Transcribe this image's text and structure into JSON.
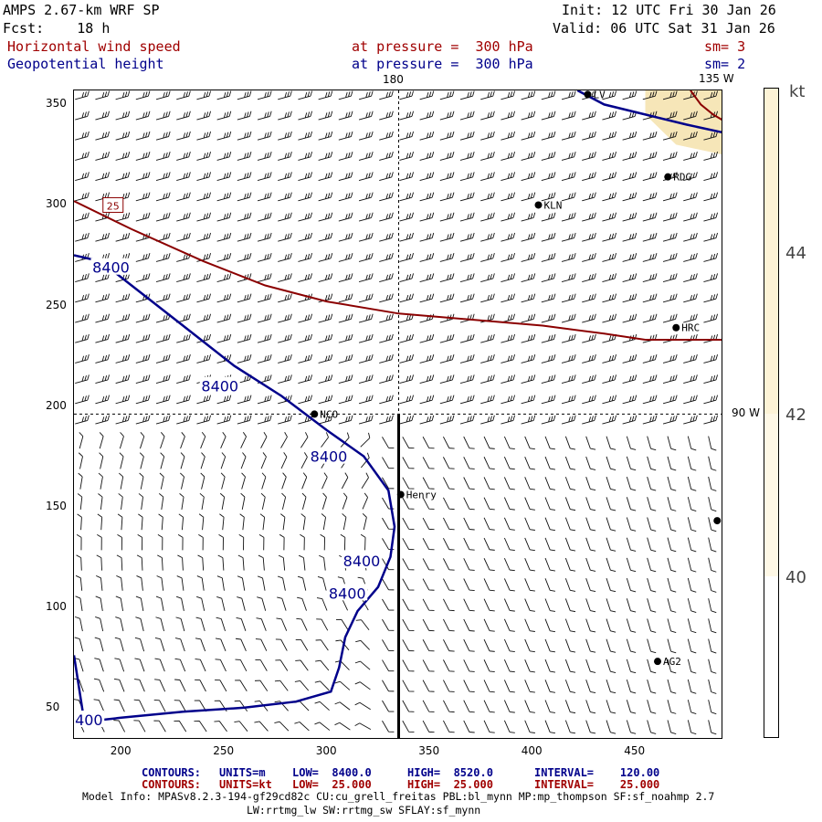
{
  "header": {
    "title": "AMPS 2.67-km WRF SP",
    "fcst": "Fcst:    18 h",
    "init": "Init: 12 UTC Fri 30 Jan 26",
    "valid": "Valid: 06 UTC Sat 31 Jan 26",
    "field1": "Horizontal wind speed",
    "field1_level": "at pressure =  300 hPa",
    "field1_sm": "sm= 3",
    "field2": "Geopotential height",
    "field2_level": "at pressure =  300 hPa",
    "field2_sm": "sm= 2"
  },
  "map": {
    "lon_label_top": "180",
    "lon_label_topright": "135 W",
    "lon_label_right": "90 W",
    "x_ticks": [
      "200",
      "250",
      "300",
      "350",
      "400",
      "450"
    ],
    "y_ticks": [
      "350",
      "300",
      "250",
      "200",
      "150",
      "100",
      "50"
    ],
    "x_tick_values": [
      200,
      250,
      300,
      350,
      400,
      450
    ],
    "y_tick_values": [
      350,
      300,
      250,
      200,
      150,
      100,
      50
    ],
    "x_range": [
      177,
      493
    ],
    "y_range": [
      34,
      357
    ],
    "stations": [
      {
        "name": "NCO",
        "x": 294,
        "y": 196
      },
      {
        "name": "Henry",
        "x": 336,
        "y": 156
      },
      {
        "name": "KLN",
        "x": 403,
        "y": 300
      },
      {
        "name": "RDG",
        "x": 466,
        "y": 314
      },
      {
        "name": "HRC",
        "x": 470,
        "y": 239
      },
      {
        "name": "AG2",
        "x": 461,
        "y": 73
      },
      {
        "name": "LV",
        "x": 427,
        "y": 355
      },
      {
        "name": "",
        "x": 490,
        "y": 143
      }
    ],
    "height_contour_label": "8400",
    "height_label_positions": [
      [
        195,
        269
      ],
      [
        248,
        210
      ],
      [
        301,
        175
      ],
      [
        317,
        123
      ],
      [
        310,
        107
      ],
      [
        182,
        44
      ]
    ],
    "wind_contour_label": "25",
    "wind_label_pos": [
      196,
      300
    ],
    "height_contour_points": [
      [
        177,
        76
      ],
      [
        182,
        43
      ],
      [
        200,
        45
      ],
      [
        230,
        48
      ],
      [
        260,
        50
      ],
      [
        285,
        53
      ],
      [
        302,
        58
      ],
      [
        306,
        70
      ],
      [
        309,
        85
      ],
      [
        315,
        98
      ],
      [
        325,
        110
      ],
      [
        331,
        125
      ],
      [
        333,
        140
      ],
      [
        330,
        158
      ],
      [
        318,
        175
      ],
      [
        300,
        188
      ],
      [
        278,
        205
      ],
      [
        255,
        220
      ],
      [
        230,
        240
      ],
      [
        205,
        260
      ],
      [
        190,
        272
      ],
      [
        177,
        275
      ]
    ],
    "height_contour_topright": [
      [
        422,
        357
      ],
      [
        435,
        350
      ],
      [
        455,
        345
      ],
      [
        475,
        340
      ],
      [
        493,
        336
      ]
    ],
    "wind_contour_points": [
      [
        177,
        302
      ],
      [
        205,
        288
      ],
      [
        240,
        272
      ],
      [
        270,
        260
      ],
      [
        300,
        252
      ],
      [
        335,
        246
      ],
      [
        370,
        243
      ],
      [
        405,
        240
      ],
      [
        435,
        236
      ],
      [
        455,
        233
      ],
      [
        493,
        233
      ]
    ],
    "wind_contour_topright": [
      [
        477,
        357
      ],
      [
        482,
        350
      ],
      [
        488,
        345
      ],
      [
        493,
        342
      ]
    ],
    "shading_region": [
      [
        455,
        357
      ],
      [
        493,
        357
      ],
      [
        493,
        325
      ],
      [
        470,
        330
      ],
      [
        455,
        345
      ]
    ]
  },
  "colorbar": {
    "unit": "kt",
    "labels": [
      "44",
      "42",
      "40"
    ],
    "shade_color": "#fdf3d6",
    "shade_color2": "#f6e6b8"
  },
  "footer": {
    "row1": [
      {
        "text": "CONTOURS:",
        "color": "#00008b"
      },
      {
        "text": "UNITS=m",
        "color": "#00008b"
      },
      {
        "text": "LOW=  8400.0",
        "color": "#00008b"
      },
      {
        "text": "HIGH=  8520.0",
        "color": "#00008b"
      },
      {
        "text": "INTERVAL=    120.00",
        "color": "#00008b"
      }
    ],
    "row2": [
      {
        "text": "CONTOURS:",
        "color": "#a00000"
      },
      {
        "text": "UNITS=kt",
        "color": "#a00000"
      },
      {
        "text": "LOW=  25.000",
        "color": "#a00000"
      },
      {
        "text": "HIGH=  25.000",
        "color": "#a00000"
      },
      {
        "text": "INTERVAL=    25.000",
        "color": "#a00000"
      }
    ],
    "model_info": "Model Info: MPASv8.2.3-194-gf29cd82c CU:cu_grell_freitas PBL:bl_mynn MP:mp_thompson SF:sf_noahmp 2.7",
    "model_info2": "LW:rrtmg_lw SW:rrtmg_sw SFLAY:sf_mynn"
  },
  "colors": {
    "height": "#00008b",
    "wind": "#8b0000",
    "frame": "#000000"
  }
}
